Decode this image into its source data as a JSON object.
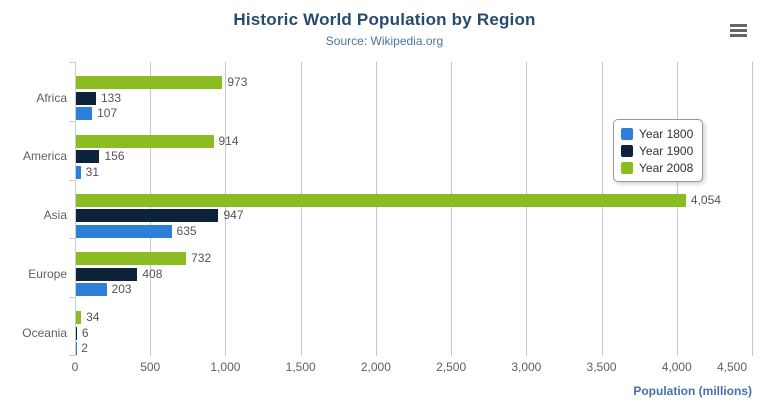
{
  "chart_data": {
    "type": "bar",
    "orientation": "horizontal",
    "title": "Historic World Population by Region",
    "subtitle": "Source: Wikipedia.org",
    "categories": [
      "Africa",
      "America",
      "Asia",
      "Europe",
      "Oceania"
    ],
    "series": [
      {
        "name": "Year 1800",
        "color": "#2f7ed8",
        "values": [
          107,
          31,
          635,
          203,
          2
        ]
      },
      {
        "name": "Year 1900",
        "color": "#0d233a",
        "values": [
          133,
          156,
          947,
          408,
          6
        ]
      },
      {
        "name": "Year 2008",
        "color": "#8bbc21",
        "values": [
          973,
          914,
          4054,
          732,
          34
        ]
      }
    ],
    "bar_order_top_to_bottom": [
      "Year 2008",
      "Year 1900",
      "Year 1800"
    ],
    "xlabel": "Population (millions)",
    "ylabel": "",
    "xlim": [
      0,
      4500
    ],
    "x_ticks": [
      0,
      500,
      1000,
      1500,
      2000,
      2500,
      3000,
      3500,
      4000,
      4500
    ],
    "grid": true,
    "data_labels": true,
    "legend_position": "middle-right"
  },
  "export_menu": {
    "icon": "hamburger-icon"
  },
  "colors": {
    "title": "#274b6d",
    "subtitle": "#4d759e",
    "axis_title": "#4572a7",
    "tick_label": "#606060",
    "data_label": "#555555",
    "gridline": "#c7c7c7",
    "axis_line": "#c0d0e0",
    "legend_border": "#999999",
    "legend_text": "#333333",
    "hamburger": "#666666",
    "background": "#ffffff"
  }
}
